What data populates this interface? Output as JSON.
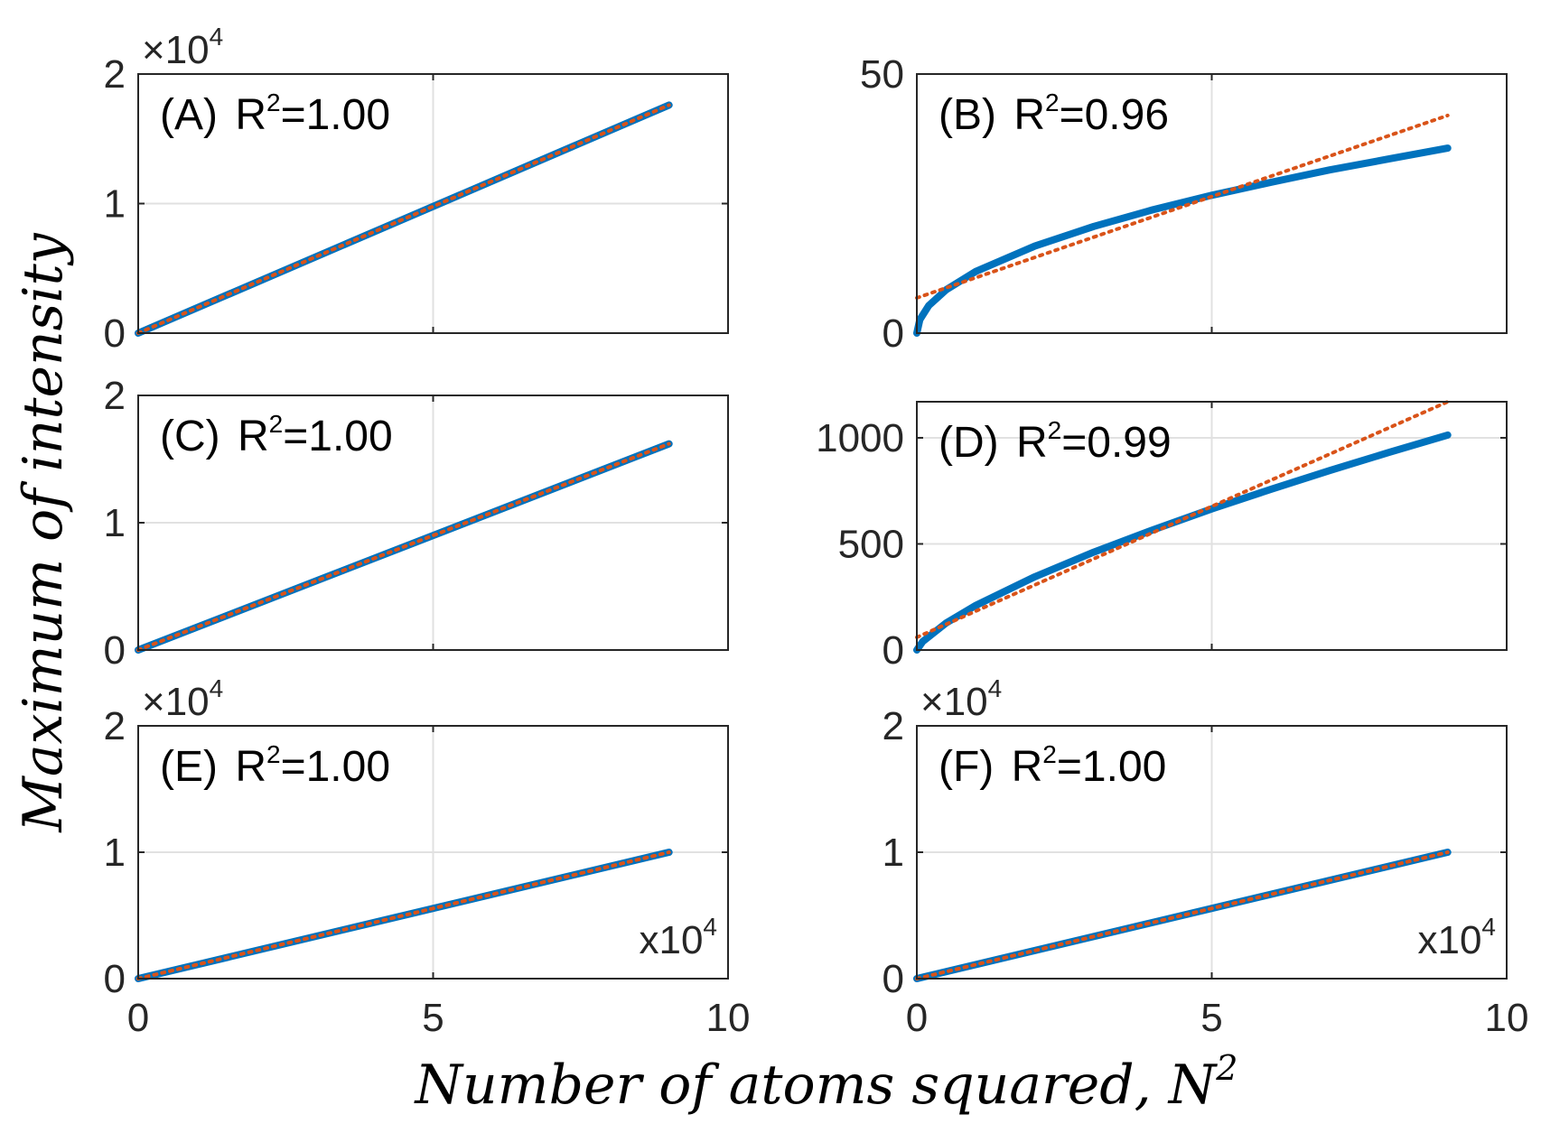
{
  "figure": {
    "y_axis_title": "Maximum of intensity",
    "x_axis_title": "Number of atoms squared, N",
    "x_axis_title_sup": "2",
    "colors": {
      "data": "#0072BD",
      "fit": "#D95319",
      "grid": "#e1e1e1",
      "axes": "#262626"
    }
  },
  "chart_data": [
    {
      "type": "line",
      "panel": "A",
      "label": "(A)",
      "r2_prefix": "R",
      "r2_sup": "2",
      "r2_value": "=1.00",
      "multiplier": {
        "text": "×10",
        "sup": "4"
      },
      "xlim": [
        0,
        10
      ],
      "ylim": [
        0,
        2
      ],
      "xticks": [
        "0",
        "5",
        "10"
      ],
      "yticks": [
        "0",
        "1",
        "2"
      ],
      "show_xticks": false,
      "grid": true,
      "series": [
        {
          "style": "solid",
          "x": [
            0,
            9
          ],
          "y": [
            0,
            1.76
          ]
        },
        {
          "style": "dotted",
          "x": [
            0,
            9
          ],
          "y": [
            0,
            1.76
          ]
        }
      ]
    },
    {
      "type": "line",
      "panel": "B",
      "label": "(B)",
      "r2_prefix": "R",
      "r2_sup": "2",
      "r2_value": "=0.96",
      "xlim": [
        0,
        10
      ],
      "ylim": [
        0,
        50
      ],
      "xticks": [
        "0",
        "5",
        "10"
      ],
      "yticks": [
        "0",
        "50"
      ],
      "show_xticks": false,
      "grid": true,
      "series": [
        {
          "style": "solid",
          "x": [
            0,
            0.05,
            0.2,
            0.5,
            1,
            2,
            3,
            4,
            5,
            6,
            7,
            8,
            9
          ],
          "y": [
            0,
            2.6,
            5.3,
            8.4,
            11.9,
            16.8,
            20.6,
            23.8,
            26.6,
            29.1,
            31.5,
            33.6,
            35.7
          ]
        },
        {
          "style": "dotted",
          "x": [
            0,
            9
          ],
          "y": [
            6.8,
            42
          ]
        }
      ]
    },
    {
      "type": "line",
      "panel": "C",
      "label": "(C)",
      "r2_prefix": "R",
      "r2_sup": "2",
      "r2_value": "=1.00",
      "xlim": [
        0,
        10
      ],
      "ylim": [
        0,
        2
      ],
      "xticks": [
        "0",
        "5",
        "10"
      ],
      "yticks": [
        "0",
        "1",
        "2"
      ],
      "show_xticks": false,
      "grid": true,
      "series": [
        {
          "style": "solid",
          "x": [
            0,
            9
          ],
          "y": [
            0,
            1.62
          ]
        },
        {
          "style": "dotted",
          "x": [
            0,
            9
          ],
          "y": [
            0,
            1.62
          ]
        }
      ]
    },
    {
      "type": "line",
      "panel": "D",
      "label": "(D)",
      "r2_prefix": "R",
      "r2_sup": "2",
      "r2_value": "=0.99",
      "xlim": [
        0,
        10
      ],
      "ylim": [
        0,
        1170
      ],
      "xticks": [
        "0",
        "5",
        "10"
      ],
      "yticks": [
        "0",
        "500",
        "1000"
      ],
      "show_xticks": false,
      "grid": true,
      "series": [
        {
          "style": "solid",
          "x": [
            0,
            0.1,
            0.5,
            1,
            2,
            3,
            4,
            5,
            6,
            7,
            8,
            9
          ],
          "y": [
            0,
            40,
            128,
            210,
            345,
            461,
            566,
            665,
            757,
            846,
            931,
            1013
          ]
        },
        {
          "style": "dotted",
          "x": [
            0,
            9
          ],
          "y": [
            60,
            1170
          ]
        }
      ]
    },
    {
      "type": "line",
      "panel": "E",
      "label": "(E)",
      "r2_prefix": "R",
      "r2_sup": "2",
      "r2_value": "=1.00",
      "multiplier": {
        "text": "×10",
        "sup": "4"
      },
      "x_multiplier": {
        "text": "x10",
        "sup": "4"
      },
      "xlim": [
        0,
        10
      ],
      "ylim": [
        0,
        2
      ],
      "xticks": [
        "0",
        "5",
        "10"
      ],
      "yticks": [
        "0",
        "1",
        "2"
      ],
      "show_xticks": true,
      "grid": true,
      "series": [
        {
          "style": "solid",
          "x": [
            0,
            9
          ],
          "y": [
            0,
            1.0
          ]
        },
        {
          "style": "dotted",
          "x": [
            0,
            9
          ],
          "y": [
            0,
            1.0
          ]
        }
      ]
    },
    {
      "type": "line",
      "panel": "F",
      "label": "(F)",
      "r2_prefix": "R",
      "r2_sup": "2",
      "r2_value": "=1.00",
      "multiplier": {
        "text": "×10",
        "sup": "4"
      },
      "x_multiplier": {
        "text": "x10",
        "sup": "4"
      },
      "xlim": [
        0,
        10
      ],
      "ylim": [
        0,
        2
      ],
      "xticks": [
        "0",
        "5",
        "10"
      ],
      "yticks": [
        "0",
        "1",
        "2"
      ],
      "show_xticks": true,
      "grid": true,
      "series": [
        {
          "style": "solid",
          "x": [
            0,
            9
          ],
          "y": [
            0,
            1.0
          ]
        },
        {
          "style": "dotted",
          "x": [
            0,
            9
          ],
          "y": [
            0,
            1.0
          ]
        }
      ]
    }
  ]
}
